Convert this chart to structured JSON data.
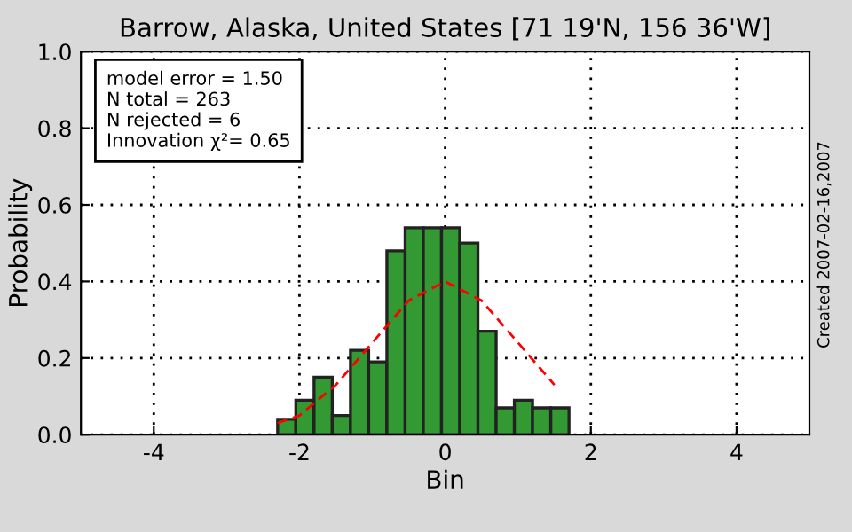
{
  "chart_data": {
    "type": "histogram",
    "title": "Barrow, Alaska, United States [71 19'N, 156 36'W]",
    "xlabel": "Bin",
    "ylabel": "Probability",
    "bins": [
      -2.3,
      -2.05,
      -1.8,
      -1.55,
      -1.3,
      -1.05,
      -0.8,
      -0.55,
      -0.3,
      -0.05,
      0.2,
      0.45,
      0.7,
      0.95,
      1.2,
      1.45,
      1.7
    ],
    "series": [
      {
        "color": "#339933",
        "values": [
          0.04,
          0.09,
          0.15,
          0.05,
          0.22,
          0.19,
          0.48,
          0.54,
          0.54,
          0.54,
          0.5,
          0.27,
          0.07,
          0.09,
          0.07,
          0.07
        ]
      },
      {
        "type": "line",
        "color": "#ff0000",
        "line_style": "dashed",
        "x": [
          -2.3,
          -2.0,
          -1.5,
          -1.0,
          -0.5,
          0.0,
          0.5,
          1.0,
          1.5
        ],
        "values": [
          0.03,
          0.05,
          0.13,
          0.24,
          0.35,
          0.4,
          0.35,
          0.24,
          0.13
        ]
      }
    ],
    "xlim": [
      -5,
      5
    ],
    "ylim": [
      0,
      1.0
    ],
    "xticks": [
      -4,
      -2,
      0,
      2,
      4
    ],
    "yticks": [
      {
        "value": 0,
        "label": "0.0"
      },
      {
        "value": 0.2,
        "label": "0.2"
      },
      {
        "value": 0.4,
        "label": "0.4"
      },
      {
        "value": 0.6,
        "label": "0.6"
      },
      {
        "value": 0.8,
        "label": "0.8"
      },
      {
        "value": 1.0,
        "label": "1.0"
      }
    ],
    "grid": true,
    "annotations": [
      "model error = 1.50\nN total = 263\nN rejected = 6\nInnovation χ²= 0.65",
      "Created 2007-02-16,2007"
    ]
  }
}
